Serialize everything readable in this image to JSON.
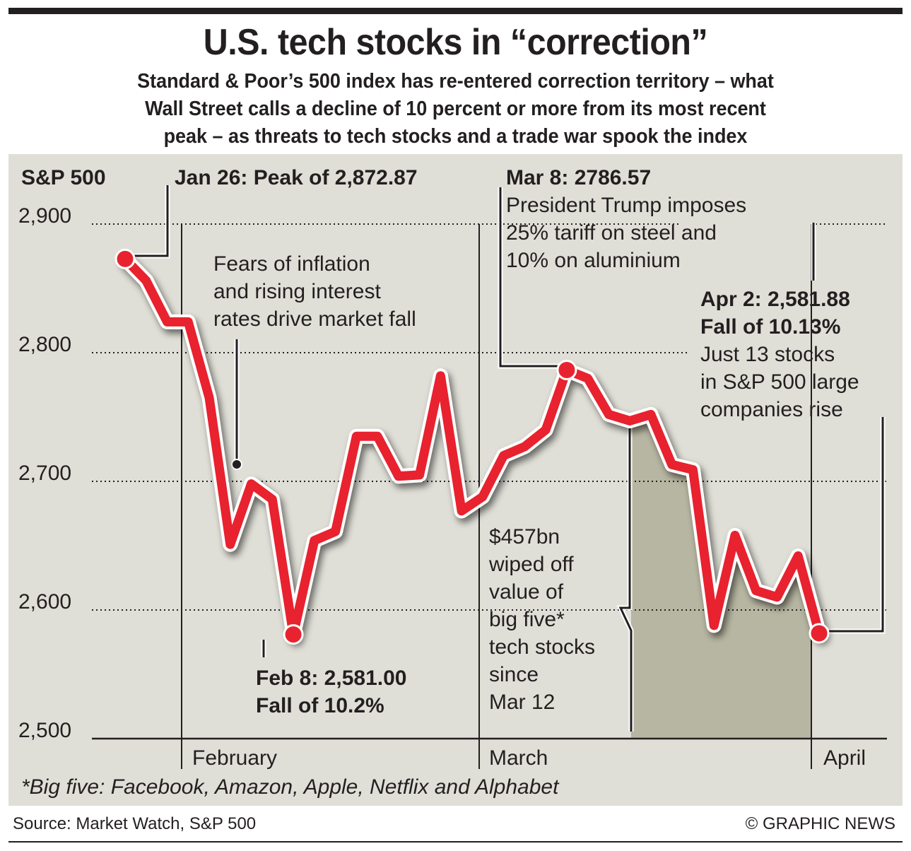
{
  "header": {
    "title": "U.S. tech stocks in “correction”",
    "subtitle_lines": [
      "Standard & Poor’s 500 index has re-entered correction territory – what",
      "Wall Street calls a decline of 10 percent or more from its most recent",
      "peak – as threats to tech stocks and a trade war spook the index"
    ]
  },
  "colors": {
    "line": "#e8232f",
    "panel_bg": "#dfdfd7",
    "shade": "#b7b6a2",
    "text": "#231f20"
  },
  "chart_data": {
    "type": "line",
    "title": "U.S. tech stocks in “correction”",
    "ylabel": "S&P 500",
    "xlabel": "",
    "ylim": [
      2500,
      2900
    ],
    "yticks": [
      2500,
      2600,
      2700,
      2800,
      2900
    ],
    "ytick_labels": [
      "2,500",
      "2,600",
      "2,700",
      "2,800",
      "2,900"
    ],
    "month_labels": [
      "February",
      "March",
      "April"
    ],
    "month_positions": [
      4.4,
      18.6,
      33.4
    ],
    "grid": true,
    "series": [
      {
        "name": "S&P 500",
        "values": [
          2872.87,
          2856,
          2824,
          2824,
          2765,
          2651,
          2698,
          2686,
          2581.0,
          2654,
          2661,
          2735,
          2735,
          2704,
          2705,
          2782,
          2677,
          2688,
          2720,
          2727,
          2740,
          2786.57,
          2780,
          2752,
          2747,
          2752,
          2713,
          2709,
          2588,
          2658,
          2615,
          2610,
          2642,
          2581.88
        ]
      }
    ],
    "shaded_range": {
      "start_index": 23,
      "end_index": 33,
      "label": "$457bn wiped off value of big five* tech stocks since Mar 12"
    },
    "highlight_points": [
      {
        "index": 0,
        "label": "Jan 26: Peak of 2,872.87"
      },
      {
        "index": 8,
        "label": "Feb 8: 2,581.00"
      },
      {
        "index": 21,
        "label": "Mar 8: 2786.57"
      },
      {
        "index": 33,
        "label": "Apr 2: 2,581.88"
      }
    ]
  },
  "annotations": {
    "axis_title": "S&P 500",
    "peak": "Jan 26: Peak of 2,872.87",
    "fears": [
      "Fears of inflation",
      "and rising interest",
      "rates drive market fall"
    ],
    "feb8": [
      "Feb 8: 2,581.00",
      "Fall of 10.2%"
    ],
    "mar8_title": "Mar 8: 2786.57",
    "mar8_body": [
      "President Trump imposes",
      "25% tariff on steel and",
      "10% on aluminium"
    ],
    "apr2_title": [
      "Apr 2: 2,581.88",
      "Fall of 10.13%"
    ],
    "apr2_body": [
      "Just 13 stocks",
      "in S&P 500 large",
      "companies rise"
    ],
    "bigfive": [
      "$457bn",
      "wiped off",
      "value of",
      "big five*",
      "tech stocks",
      "since",
      "Mar 12"
    ]
  },
  "footer": {
    "footnote": "*Big five: Facebook, Amazon, Apple, Netflix and Alphabet",
    "source": "Source: Market Watch, S&P 500",
    "credit": "© GRAPHIC NEWS"
  }
}
